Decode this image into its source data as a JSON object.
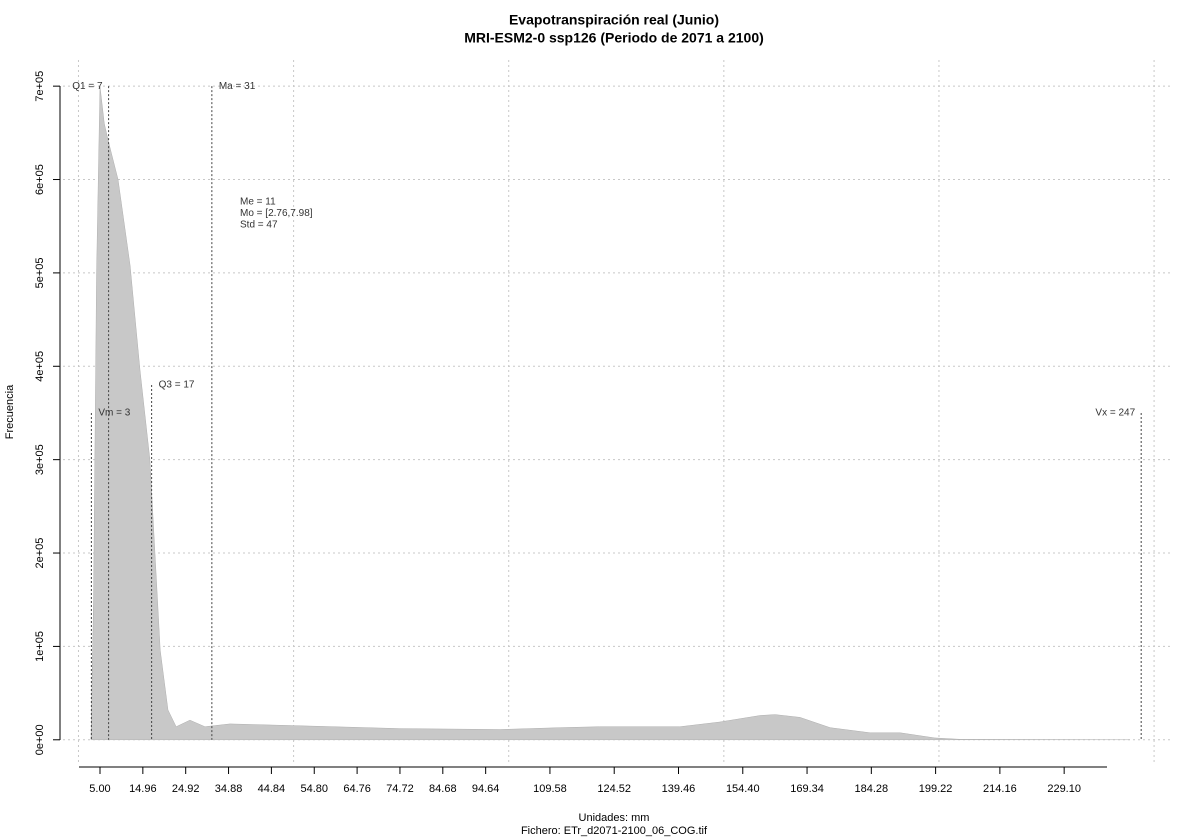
{
  "chart_data": {
    "type": "area",
    "title": "Evapotranspiración real (Junio)",
    "subtitle": "MRI-ESM2-0 ssp126 (Periodo de 2071 a 2100)",
    "x_label": "Unidades: mm",
    "caption": "Fichero: ETr_d2071-2100_06_COG.tif",
    "y_label": "Frecuencia",
    "color": "#c8c8c8",
    "grid": true,
    "xlim": [
      -4.76,
      253.7
    ],
    "ylim": [
      -27000,
      728000
    ],
    "x_grid": [
      0,
      50,
      100,
      150,
      200,
      250
    ],
    "xticks": [
      {
        "value": 5,
        "label": "5.00"
      },
      {
        "value": 14.96,
        "label": "14.96"
      },
      {
        "value": 24.92,
        "label": "24.92"
      },
      {
        "value": 34.88,
        "label": "34.88"
      },
      {
        "value": 44.84,
        "label": "44.84"
      },
      {
        "value": 54.8,
        "label": "54.80"
      },
      {
        "value": 64.76,
        "label": "64.76"
      },
      {
        "value": 74.72,
        "label": "74.72"
      },
      {
        "value": 84.68,
        "label": "84.68"
      },
      {
        "value": 94.64,
        "label": "94.64"
      },
      {
        "value": 109.58,
        "label": "109.58"
      },
      {
        "value": 124.52,
        "label": "124.52"
      },
      {
        "value": 139.46,
        "label": "139.46"
      },
      {
        "value": 154.4,
        "label": "154.40"
      },
      {
        "value": 169.34,
        "label": "169.34"
      },
      {
        "value": 184.28,
        "label": "184.28"
      },
      {
        "value": 199.22,
        "label": "199.22"
      },
      {
        "value": 214.16,
        "label": "214.16"
      },
      {
        "value": 229.1,
        "label": "229.10"
      }
    ],
    "yticks": [
      {
        "value": 0,
        "label": "0e+00"
      },
      {
        "value": 100000,
        "label": "1e+05"
      },
      {
        "value": 200000,
        "label": "2e+05"
      },
      {
        "value": 300000,
        "label": "3e+05"
      },
      {
        "value": 400000,
        "label": "4e+05"
      },
      {
        "value": 500000,
        "label": "5e+05"
      },
      {
        "value": 600000,
        "label": "6e+05"
      },
      {
        "value": 700000,
        "label": "7e+05"
      }
    ],
    "x": [
      2.9,
      3.5,
      4.2,
      5.0,
      6.0,
      7.0,
      9.2,
      12.0,
      14.3,
      16.6,
      19.0,
      20.8,
      22.7,
      25.9,
      29.4,
      35.2,
      51.5,
      74.7,
      98.0,
      112.0,
      121.0,
      139.8,
      149.0,
      158.4,
      161.9,
      167.7,
      174.7,
      184.0,
      191.0,
      199.0,
      205.0,
      244.4
    ],
    "values": [
      0,
      150000,
      500000,
      700000,
      660000,
      640000,
      600000,
      508000,
      396000,
      300000,
      96000,
      32000,
      14000,
      21000,
      14000,
      17000,
      15000,
      12000,
      11000,
      13000,
      14000,
      14000,
      19000,
      26000,
      27000,
      24000,
      13000,
      7500,
      7500,
      2000,
      500,
      0
    ],
    "markers": [
      {
        "label": "Vm = 3",
        "x": 3,
        "y": 350000
      },
      {
        "label": "Q1 = 7",
        "x": 7,
        "y": 700000
      },
      {
        "label": "Q3 = 17",
        "x": 17,
        "y": 380000
      },
      {
        "label": "Ma = 31",
        "x": 31,
        "y": 700000
      },
      {
        "label": "Vx = 247",
        "x": 247,
        "y": 350000
      }
    ],
    "annotations": [
      "Me = 11",
      "Mo = [2.76,7.98]",
      "Std = 47"
    ]
  }
}
